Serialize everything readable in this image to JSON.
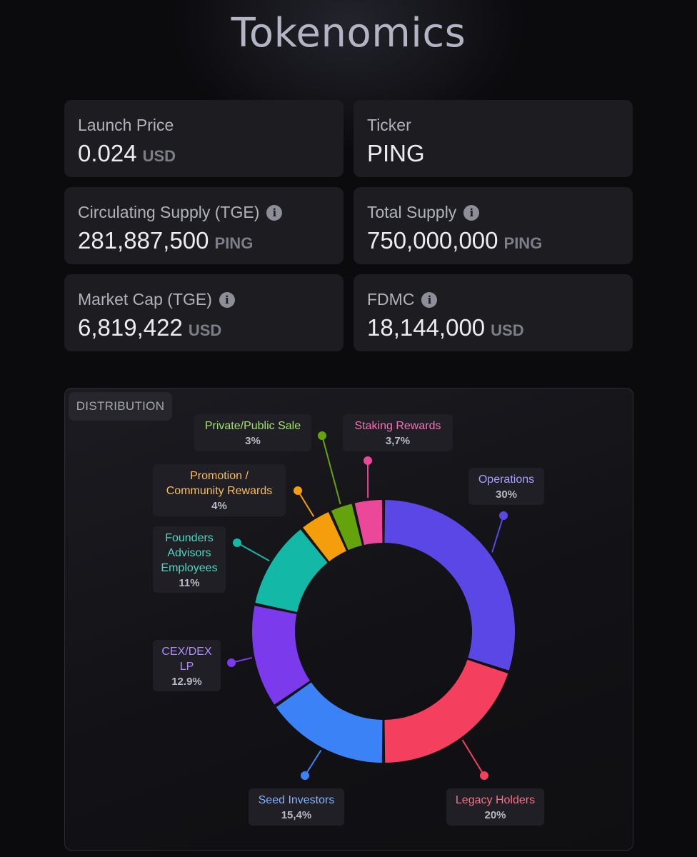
{
  "page": {
    "title": "Tokenomics"
  },
  "stats": [
    {
      "label": "Launch Price",
      "value": "0.024",
      "unit": "USD",
      "info": false
    },
    {
      "label": "Ticker",
      "value": "PING",
      "unit": "",
      "info": false
    },
    {
      "label": "Circulating Supply (TGE)",
      "value": "281,887,500",
      "unit": "PING",
      "info": true
    },
    {
      "label": "Total Supply",
      "value": "750,000,000",
      "unit": "PING",
      "info": true
    },
    {
      "label": "Market Cap (TGE)",
      "value": "6,819,422",
      "unit": "USD",
      "info": true
    },
    {
      "label": "FDMC",
      "value": "18,144,000",
      "unit": "USD",
      "info": true
    }
  ],
  "icons": {
    "info": "info-icon"
  },
  "chart_data": {
    "type": "pie",
    "title": "DISTRIBUTION",
    "style": "donut",
    "series": [
      {
        "name": "Operations",
        "name_lines": [
          "Operations"
        ],
        "value": 30,
        "label": "30%",
        "color": "#5b47e6",
        "text_color": "#a7a0ff"
      },
      {
        "name": "Legacy Holders",
        "name_lines": [
          "Legacy Holders"
        ],
        "value": 20,
        "label": "20%",
        "color": "#f43f5e",
        "text_color": "#f87185"
      },
      {
        "name": "Seed Investors",
        "name_lines": [
          "Seed Investors"
        ],
        "value": 15.4,
        "label": "15,4%",
        "color": "#3b82f6",
        "text_color": "#7fb2ff"
      },
      {
        "name": "CEX/DEX LP",
        "name_lines": [
          "CEX/DEX",
          "LP"
        ],
        "value": 12.9,
        "label": "12.9%",
        "color": "#7c3aed",
        "text_color": "#b48cff"
      },
      {
        "name": "Founders Advisors Employees",
        "name_lines": [
          "Founders",
          "Advisors",
          "Employees"
        ],
        "value": 11,
        "label": "11%",
        "color": "#14b8a6",
        "text_color": "#4fd6c3"
      },
      {
        "name": "Promotion / Community Rewards",
        "name_lines": [
          "Promotion /",
          "Community Rewards"
        ],
        "value": 4,
        "label": "4%",
        "color": "#f59e0b",
        "text_color": "#fbbf5a"
      },
      {
        "name": "Private/Public Sale",
        "name_lines": [
          "Private/Public Sale"
        ],
        "value": 3,
        "label": "3%",
        "color": "#65a30d",
        "text_color": "#a3e26a"
      },
      {
        "name": "Staking Rewards",
        "name_lines": [
          "Staking Rewards"
        ],
        "value": 3.7,
        "label": "3,7%",
        "color": "#ec4899",
        "text_color": "#f472b6"
      }
    ]
  }
}
